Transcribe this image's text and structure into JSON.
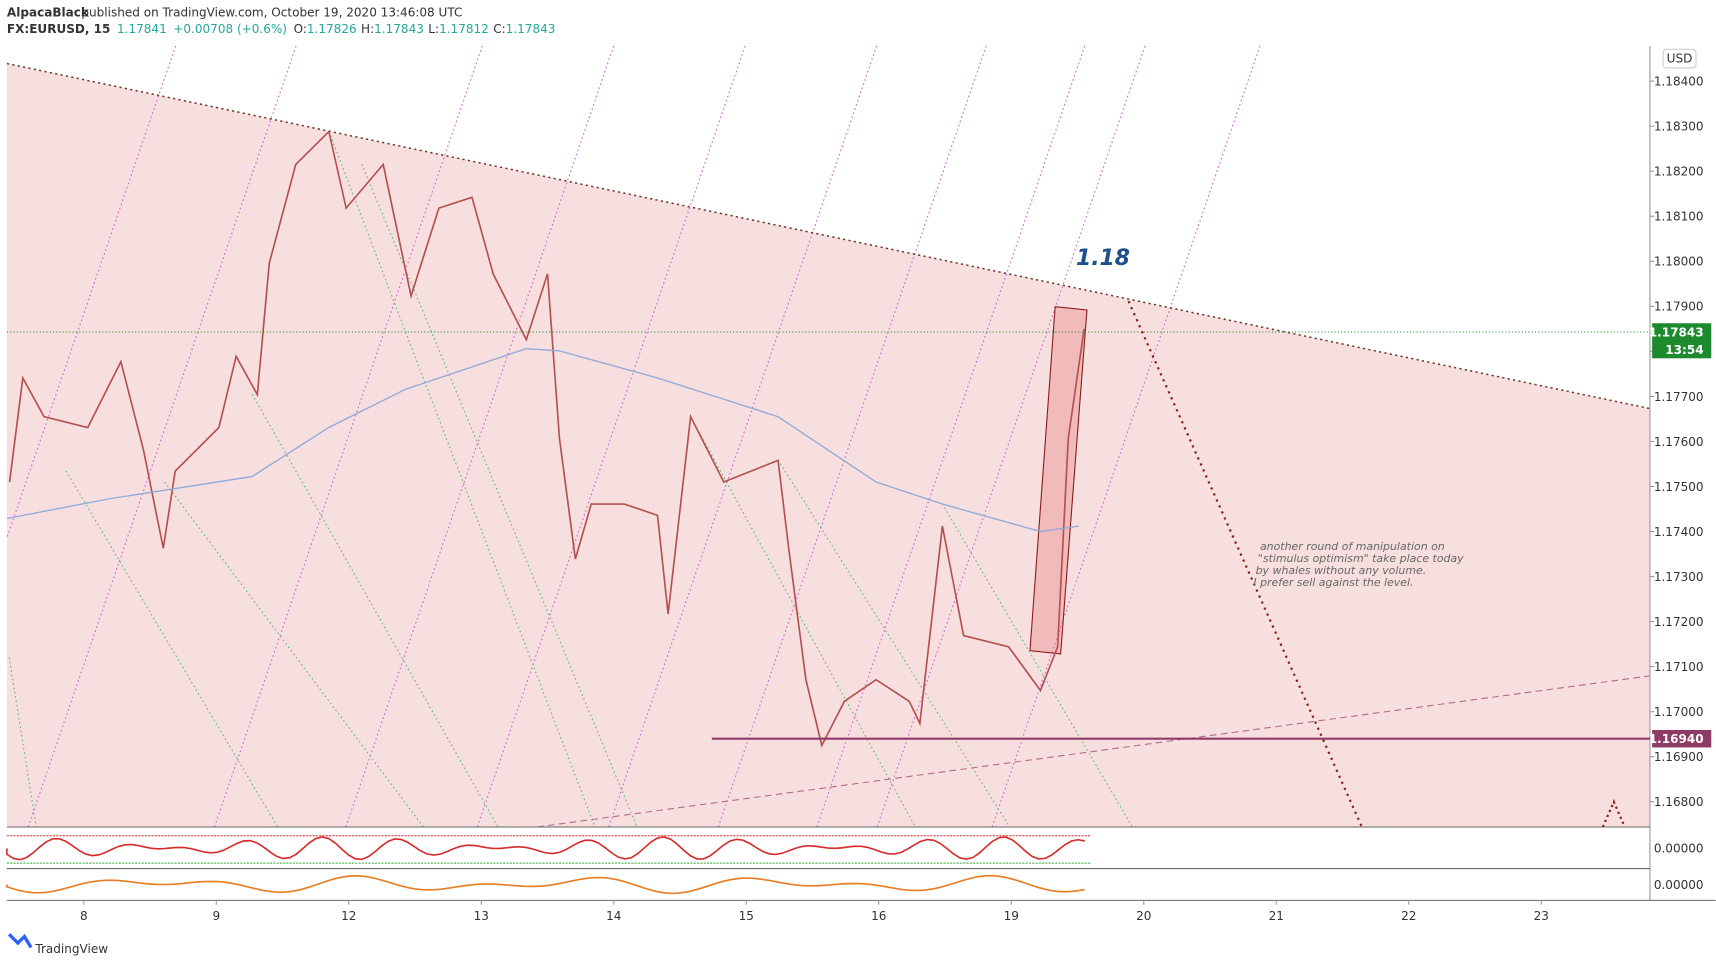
{
  "header": {
    "author": "AlpacaBlack",
    "published": "published on TradingView.com, October 19, 2020 13:46:08 UTC",
    "symbol": "FX:EURUSD, 15",
    "last": "1.17841",
    "change": "+0.00708 (+0.6%)",
    "ohlc": [
      {
        "label": "O:",
        "value": "1.17826"
      },
      {
        "label": "H:",
        "value": "1.17843"
      },
      {
        "label": "L:",
        "value": "1.17812"
      },
      {
        "label": "C:",
        "value": "1.17843"
      }
    ]
  },
  "chart_data": {
    "type": "line",
    "currency": "USD",
    "xlim": [
      -0.58,
      11.82
    ],
    "xticks": [
      {
        "value": 0,
        "label": "8"
      },
      {
        "value": 1,
        "label": "9"
      },
      {
        "value": 2,
        "label": "12"
      },
      {
        "value": 3,
        "label": "13"
      },
      {
        "value": 4,
        "label": "14"
      },
      {
        "value": 5,
        "label": "15"
      },
      {
        "value": 6,
        "label": "16"
      },
      {
        "value": 7,
        "label": "19"
      },
      {
        "value": 8,
        "label": "20"
      },
      {
        "value": 9,
        "label": "21"
      },
      {
        "value": 10,
        "label": "22"
      },
      {
        "value": 11,
        "label": "23"
      }
    ],
    "ylim": [
      1.16744,
      1.18478
    ],
    "yticks": [
      {
        "value": 1.168,
        "label": "1.16800"
      },
      {
        "value": 1.169,
        "label": "1.16900"
      },
      {
        "value": 1.17,
        "label": "1.17000"
      },
      {
        "value": 1.171,
        "label": "1.17100"
      },
      {
        "value": 1.172,
        "label": "1.17200"
      },
      {
        "value": 1.173,
        "label": "1.17300"
      },
      {
        "value": 1.174,
        "label": "1.17400"
      },
      {
        "value": 1.175,
        "label": "1.17500"
      },
      {
        "value": 1.176,
        "label": "1.17600"
      },
      {
        "value": 1.177,
        "label": "1.17700"
      },
      {
        "value": 1.178,
        "label": "1.17800"
      },
      {
        "value": 1.179,
        "label": "1.17900"
      },
      {
        "value": 1.18,
        "label": "1.18000"
      },
      {
        "value": 1.181,
        "label": "1.18100"
      },
      {
        "value": 1.182,
        "label": "1.18200"
      },
      {
        "value": 1.183,
        "label": "1.18300"
      },
      {
        "value": 1.184,
        "label": "1.18400"
      }
    ],
    "series": [
      {
        "color": "#b4504f",
        "x": [
          -0.56,
          -0.46,
          -0.3,
          0.03,
          0.28,
          0.45,
          0.6,
          0.69,
          1.02,
          1.15,
          1.31,
          1.4,
          1.6,
          1.85,
          1.98,
          2.26,
          2.47,
          2.68,
          2.93,
          3.09,
          3.34,
          3.5,
          3.59,
          3.71,
          3.83,
          4.08,
          4.33,
          4.41,
          4.58,
          4.83,
          5.24,
          5.32,
          5.45,
          5.57,
          5.74,
          5.98,
          6.23,
          6.31,
          6.48,
          6.64,
          6.98,
          7.22,
          7.35,
          7.43,
          7.55
        ],
        "values": [
          1.1751,
          1.17741,
          1.17655,
          1.17631,
          1.17777,
          1.17582,
          1.17363,
          1.17534,
          1.17631,
          1.17789,
          1.17704,
          1.17996,
          1.18215,
          1.18288,
          1.18118,
          1.18215,
          1.17923,
          1.18118,
          1.18142,
          1.17972,
          1.17826,
          1.17972,
          1.17607,
          1.17339,
          1.17461,
          1.17461,
          1.17436,
          1.17217,
          1.17655,
          1.1751,
          1.17558,
          1.17363,
          1.17071,
          1.16925,
          1.17023,
          1.17071,
          1.17023,
          1.16974,
          1.17412,
          1.17169,
          1.17144,
          1.17047,
          1.17144,
          1.17607,
          1.1785
        ]
      },
      {
        "color": "#8fa9d8",
        "x": [
          -0.58,
          0.2,
          1.27,
          1.85,
          2.43,
          3.34,
          3.59,
          4.33,
          5.24,
          5.98,
          6.48,
          7.22,
          7.51
        ],
        "values": [
          1.17429,
          1.17473,
          1.17522,
          1.17631,
          1.17716,
          1.17806,
          1.17801,
          1.17741,
          1.17655,
          1.1751,
          1.17461,
          1.174,
          1.17412
        ]
      }
    ],
    "levels": [
      {
        "value": 1.1694,
        "label": "1.16940",
        "color": "#8e3b66",
        "from": 4.74
      }
    ],
    "last_price": {
      "value": 1.17843,
      "label": "1.17843",
      "countdown": "13:54",
      "color": "#1e8a2e"
    },
    "annotations": [
      {
        "text": "1.18"
      },
      {
        "lines": [
          "another round of manipulation on",
          "\"stimulus optimism\" take place today",
          "by whales without any volume.",
          "I prefer sell against the level."
        ]
      }
    ],
    "indicator_panes": [
      {
        "label": "0.00000"
      },
      {
        "label": "0.00000"
      }
    ]
  },
  "footer": {
    "brand": "TradingView"
  }
}
